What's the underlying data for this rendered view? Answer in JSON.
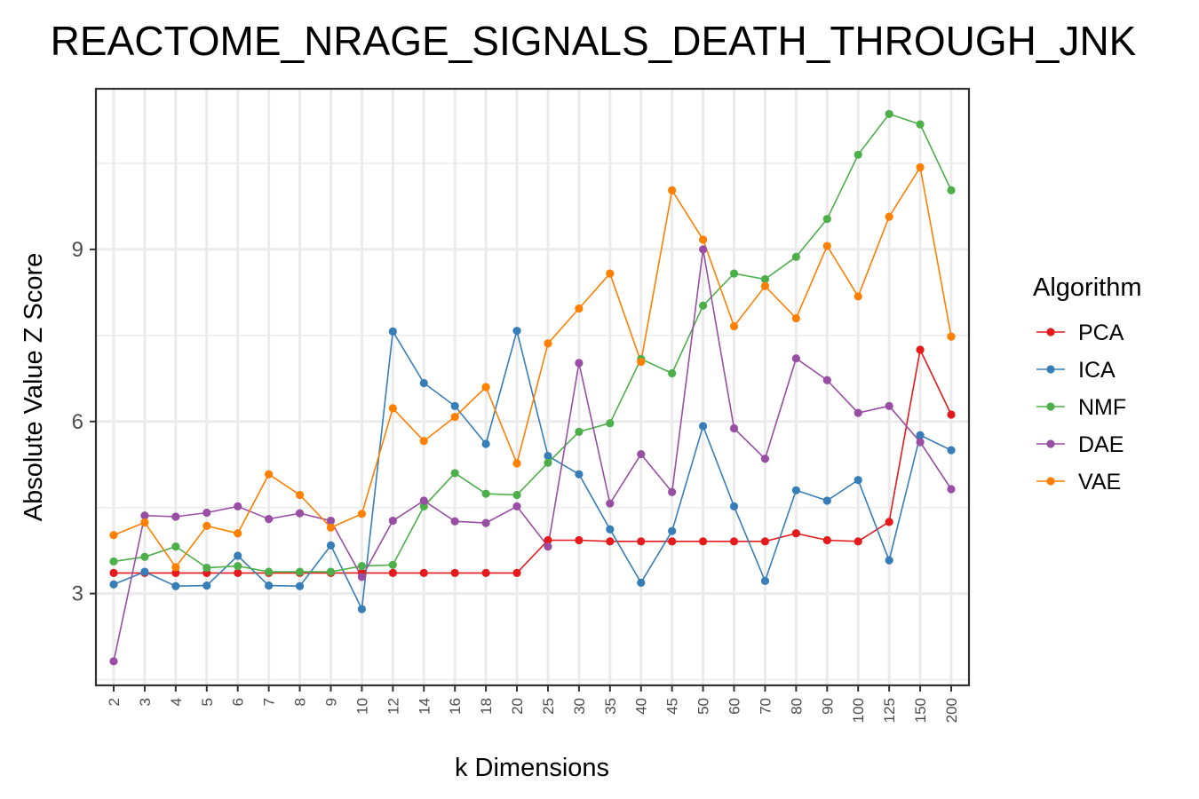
{
  "chart_data": {
    "type": "line",
    "title": "REACTOME_NRAGE_SIGNALS_DEATH_THROUGH_JNK",
    "xlabel": "k Dimensions",
    "ylabel": "Absolute Value Z Score",
    "categories": [
      "2",
      "3",
      "4",
      "5",
      "6",
      "7",
      "8",
      "9",
      "10",
      "12",
      "14",
      "16",
      "18",
      "20",
      "25",
      "30",
      "35",
      "40",
      "45",
      "50",
      "60",
      "70",
      "80",
      "90",
      "100",
      "125",
      "150",
      "200"
    ],
    "ylim": [
      1.4,
      11.8
    ],
    "yticks": [
      3,
      6,
      9
    ],
    "grid": true,
    "legend": {
      "title": "Algorithm",
      "position": "right"
    },
    "series": [
      {
        "name": "PCA",
        "color": "#e41a1c",
        "values": [
          3.36,
          3.36,
          3.36,
          3.36,
          3.36,
          3.36,
          3.36,
          3.36,
          3.36,
          3.36,
          3.36,
          3.36,
          3.36,
          3.36,
          3.93,
          3.93,
          3.91,
          3.91,
          3.91,
          3.91,
          3.91,
          3.91,
          4.05,
          3.93,
          3.91,
          4.25,
          7.25,
          6.12
        ]
      },
      {
        "name": "ICA",
        "color": "#377eb8",
        "values": [
          3.16,
          3.38,
          3.13,
          3.14,
          3.66,
          3.14,
          3.13,
          3.84,
          2.73,
          7.57,
          6.67,
          6.27,
          5.61,
          7.58,
          5.4,
          5.08,
          4.12,
          3.19,
          4.09,
          5.92,
          4.52,
          3.22,
          4.8,
          4.62,
          4.98,
          3.58,
          5.76,
          5.5
        ]
      },
      {
        "name": "NMF",
        "color": "#4daf4a",
        "values": [
          3.56,
          3.64,
          3.82,
          3.45,
          3.48,
          3.38,
          3.38,
          3.38,
          3.48,
          3.5,
          4.52,
          5.1,
          4.74,
          4.72,
          5.28,
          5.82,
          5.97,
          7.09,
          6.84,
          8.02,
          8.58,
          8.48,
          8.87,
          9.53,
          10.65,
          11.36,
          11.18,
          10.03
        ]
      },
      {
        "name": "DAE",
        "color": "#984ea3",
        "values": [
          1.82,
          4.36,
          4.34,
          4.41,
          4.52,
          4.3,
          4.4,
          4.27,
          3.29,
          4.27,
          4.62,
          4.26,
          4.23,
          4.52,
          3.82,
          7.02,
          4.57,
          5.43,
          4.77,
          9.0,
          5.88,
          5.35,
          7.1,
          6.72,
          6.15,
          6.27,
          5.64,
          4.82
        ]
      },
      {
        "name": "VAE",
        "color": "#ff7f00",
        "values": [
          4.02,
          4.24,
          3.46,
          4.18,
          4.05,
          5.08,
          4.72,
          4.15,
          4.39,
          6.23,
          5.66,
          6.08,
          6.6,
          5.27,
          7.36,
          7.97,
          8.58,
          7.04,
          10.03,
          9.17,
          7.66,
          8.36,
          7.8,
          9.06,
          8.18,
          9.57,
          10.43,
          7.48
        ]
      }
    ]
  }
}
